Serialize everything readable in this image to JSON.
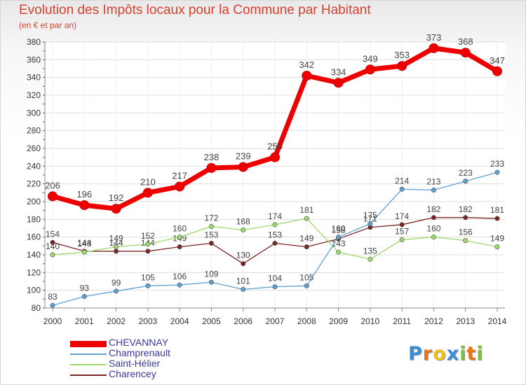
{
  "header": {
    "title": "Evolution des Impôts locaux pour la Commune par Habitant",
    "subtitle": "(en € et par an)"
  },
  "colors": {
    "title": "#d8412f",
    "grid": "#dddddd",
    "axis": "#888888"
  },
  "chart_data": {
    "type": "line",
    "x": [
      2000,
      2001,
      2002,
      2003,
      2004,
      2005,
      2006,
      2007,
      2008,
      2009,
      2010,
      2011,
      2012,
      2013,
      2014
    ],
    "ylim": [
      80,
      380
    ],
    "yticks": [
      80,
      100,
      120,
      140,
      160,
      180,
      200,
      220,
      240,
      260,
      280,
      300,
      320,
      340,
      360,
      380
    ],
    "grid": true,
    "legend_position": "bottom-left",
    "series": [
      {
        "name": "CHEVANNAY",
        "color": "#ee0000",
        "values": [
          206,
          196,
          192,
          210,
          217,
          238,
          239,
          250,
          342,
          334,
          349,
          353,
          373,
          368,
          347
        ],
        "labels": [
          "206",
          "196",
          "192",
          "210",
          "217",
          "238",
          "239",
          "250",
          "342",
          "334",
          "349",
          "353",
          "373",
          "368",
          "347"
        ]
      },
      {
        "name": "Champrenault",
        "color": "#5ea0d0",
        "values": [
          83,
          93,
          99,
          105,
          106,
          109,
          101,
          104,
          105,
          160,
          175,
          214,
          213,
          223,
          233
        ],
        "labels": [
          "83",
          "93",
          "99",
          "105",
          "106",
          "109",
          "101",
          "104",
          "105",
          "160",
          "175",
          "214",
          "213",
          "223",
          "233"
        ]
      },
      {
        "name": "Saint-Hélier",
        "color": "#9dd86c",
        "values": [
          140,
          143,
          149,
          152,
          160,
          172,
          168,
          174,
          181,
          143,
          135,
          157,
          160,
          156,
          149
        ],
        "labels": [
          "140",
          "143",
          "149",
          "152",
          "160",
          "172",
          "168",
          "174",
          "181",
          "143",
          "135",
          "157",
          "160",
          "156",
          "149"
        ]
      },
      {
        "name": "Charencey",
        "color": "#7a2424",
        "values": [
          154,
          144,
          144,
          144,
          149,
          153,
          130,
          153,
          149,
          158,
          171,
          174,
          182,
          182,
          181
        ],
        "labels": [
          "154",
          "144",
          "144",
          "144",
          "149",
          "153",
          "130",
          "153",
          "149",
          "158",
          "171",
          "174",
          "182",
          "182",
          "181"
        ]
      }
    ]
  },
  "brand": {
    "letters": [
      "P",
      "r",
      "o",
      "x",
      "i",
      "t",
      "i"
    ],
    "colors": [
      "#3a8ed6",
      "#e8751a",
      "#f0c020",
      "#3a8ed6",
      "#7cc23a",
      "#e8751a",
      "#7cc23a"
    ]
  }
}
